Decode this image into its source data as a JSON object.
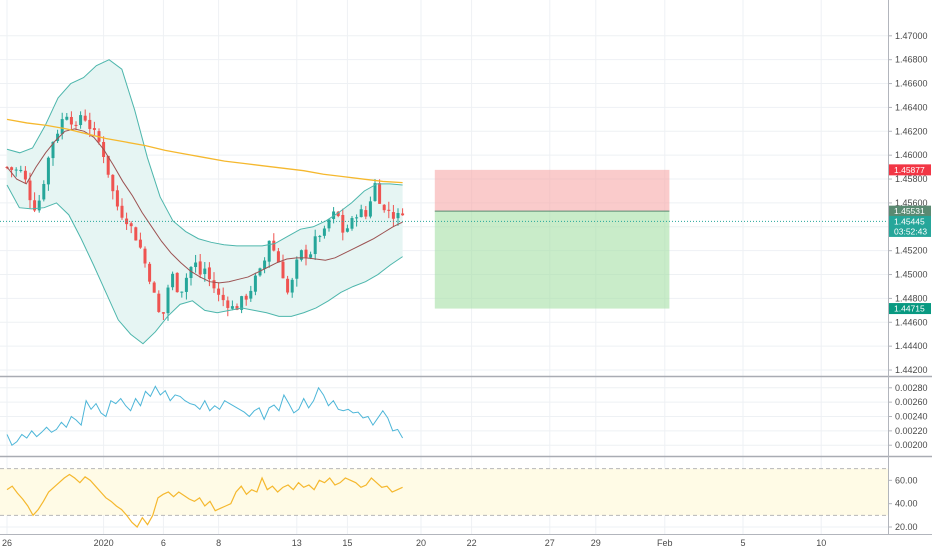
{
  "chart_data": [
    {
      "id": "price",
      "type": "candlestick",
      "title": "",
      "ylim": [
        1.4415,
        1.473
      ],
      "y_ticks": [
        "1.47000",
        "1.46800",
        "1.46600",
        "1.46400",
        "1.46200",
        "1.46000",
        "1.45800",
        "1.45600",
        "1.45400",
        "1.45200",
        "1.45000",
        "1.44800",
        "1.44600",
        "1.44400",
        "1.44200"
      ],
      "x_ticks": [
        {
          "i": 0,
          "label": "26"
        },
        {
          "i": 21,
          "label": "2020"
        },
        {
          "i": 34,
          "label": "6"
        },
        {
          "i": 46,
          "label": "8"
        },
        {
          "i": 63,
          "label": "13"
        },
        {
          "i": 74,
          "label": "15"
        },
        {
          "i": 90,
          "label": "20"
        },
        {
          "i": 101,
          "label": "22"
        },
        {
          "i": 118,
          "label": "27"
        },
        {
          "i": 128,
          "label": "29"
        },
        {
          "i": 143,
          "label": "Feb"
        },
        {
          "i": 160,
          "label": "5"
        },
        {
          "i": 177,
          "label": "10"
        }
      ],
      "x_slots": 186,
      "close_path": [
        1.459,
        1.4588,
        1.4587,
        1.4586,
        1.4575,
        1.456,
        1.4555,
        1.457,
        1.459,
        1.461,
        1.4618,
        1.4628,
        1.4636,
        1.463,
        1.462,
        1.4636,
        1.463,
        1.4622,
        1.4615,
        1.4608,
        1.4595,
        1.4575,
        1.456,
        1.4552,
        1.4548,
        1.454,
        1.4532,
        1.4522,
        1.4508,
        1.4496,
        1.4478,
        1.4463,
        1.447,
        1.4505,
        1.4492,
        1.4485,
        1.4495,
        1.4505,
        1.451,
        1.45,
        1.4505,
        1.4495,
        1.4488,
        1.448,
        1.4478,
        1.4475,
        1.447,
        1.4476,
        1.448,
        1.4485,
        1.4495,
        1.45,
        1.451,
        1.453,
        1.452,
        1.451,
        1.4498,
        1.448,
        1.45,
        1.4515,
        1.452,
        1.4515,
        1.4525,
        1.4535,
        1.4532,
        1.4545,
        1.455,
        1.4548,
        1.4535,
        1.454,
        1.4545,
        1.4555,
        1.455,
        1.4548,
        1.458,
        1.457,
        1.4552,
        1.4555,
        1.455,
        1.4548,
        1.4554
      ],
      "indicators": [
        {
          "name": "basis",
          "color": "#9c5252",
          "values": [
            1.459,
            1.458,
            1.4576,
            1.459,
            1.4602,
            1.4612,
            1.462,
            1.4622,
            1.462,
            1.4615,
            1.4605,
            1.4592,
            1.4578,
            1.4566,
            1.4552,
            1.454,
            1.4528,
            1.4518,
            1.451,
            1.4503,
            1.4498,
            1.4494,
            1.4493,
            1.4494,
            1.4496,
            1.4498,
            1.4502,
            1.4506,
            1.451,
            1.4513,
            1.4514,
            1.4514,
            1.4513,
            1.4512,
            1.4514,
            1.4518,
            1.4522,
            1.4526,
            1.453,
            1.4535,
            1.454,
            1.4544
          ]
        },
        {
          "name": "upper",
          "color": "#4db6ac",
          "values": [
            1.4605,
            1.4602,
            1.4606,
            1.4625,
            1.4648,
            1.466,
            1.4665,
            1.4675,
            1.468,
            1.4672,
            1.4638,
            1.4598,
            1.4565,
            1.4545,
            1.4536,
            1.453,
            1.4527,
            1.4525,
            1.4524,
            1.4524,
            1.4524,
            1.4526,
            1.4532,
            1.4538,
            1.454,
            1.4545,
            1.4552,
            1.456,
            1.457,
            1.4576,
            1.4576,
            1.4575
          ]
        },
        {
          "name": "lower",
          "color": "#4db6ac",
          "values": [
            1.4575,
            1.4556,
            1.4555,
            1.4556,
            1.456,
            1.455,
            1.453,
            1.4508,
            1.4485,
            1.4462,
            1.445,
            1.4442,
            1.4452,
            1.4465,
            1.4475,
            1.4478,
            1.447,
            1.4468,
            1.447,
            1.4472,
            1.447,
            1.4468,
            1.4465,
            1.4465,
            1.4468,
            1.4472,
            1.4478,
            1.4485,
            1.449,
            1.4494,
            1.45,
            1.4508,
            1.4515
          ]
        },
        {
          "name": "ma",
          "color": "#f5b82e",
          "values": [
            1.463,
            1.4627,
            1.4625,
            1.4622,
            1.4618,
            1.4614,
            1.4611,
            1.4608,
            1.4604,
            1.4601,
            1.4598,
            1.4595,
            1.4593,
            1.4591,
            1.4589,
            1.4587,
            1.4584,
            1.4582,
            1.458,
            1.4578,
            1.4577
          ]
        }
      ],
      "position": {
        "entry": 1.45531,
        "stop": 1.45877,
        "target": 1.44715,
        "from_i": 93,
        "to_i": 144,
        "loss_color": "#f7a8a8",
        "profit_color": "#a5dfa5"
      },
      "price_tags": [
        {
          "label": "1.45877",
          "value": 1.45877,
          "color": "#f23645"
        },
        {
          "label": "1.45531",
          "value": 1.45531,
          "color": "#5a8a72"
        },
        {
          "label": "1.45445",
          "value": 1.45445,
          "color": "#26a69a"
        },
        {
          "label": "03:52:43",
          "value": 1.45445,
          "color": "#26a69a",
          "offset": 1
        },
        {
          "label": "1.44715",
          "value": 1.44715,
          "color": "#089981"
        }
      ],
      "current_price": 1.45445,
      "colors": {
        "up": "#26a69a",
        "down": "#ef5350",
        "band_fill": "#e6f5f3",
        "grid": "#eef1f4"
      }
    },
    {
      "id": "volatility",
      "type": "line",
      "ylim": [
        0.00185,
        0.00295
      ],
      "y_ticks": [
        "0.00280",
        "0.00260",
        "0.00240",
        "0.00220",
        "0.00200"
      ],
      "color": "#4db6d8",
      "values": [
        0.00215,
        0.002,
        0.00205,
        0.00215,
        0.0021,
        0.0022,
        0.00212,
        0.00218,
        0.00225,
        0.00218,
        0.00222,
        0.00232,
        0.00225,
        0.0024,
        0.00235,
        0.00228,
        0.00262,
        0.0025,
        0.00258,
        0.00245,
        0.0024,
        0.00262,
        0.00258,
        0.00265,
        0.00255,
        0.00248,
        0.00265,
        0.00255,
        0.00275,
        0.00268,
        0.00282,
        0.0027,
        0.00276,
        0.00262,
        0.0027,
        0.00268,
        0.00262,
        0.00258,
        0.00256,
        0.0025,
        0.00262,
        0.00248,
        0.00255,
        0.0025,
        0.00262,
        0.00258,
        0.00254,
        0.0025,
        0.00246,
        0.0024,
        0.00248,
        0.00252,
        0.00236,
        0.00252,
        0.00256,
        0.00248,
        0.0027,
        0.00258,
        0.00245,
        0.0025,
        0.00265,
        0.00252,
        0.00262,
        0.0028,
        0.0027,
        0.00255,
        0.00262,
        0.0025,
        0.00248,
        0.0025,
        0.00245,
        0.00246,
        0.00238,
        0.0024,
        0.00228,
        0.00238,
        0.00248,
        0.00238,
        0.0022,
        0.00222,
        0.0021
      ]
    },
    {
      "id": "rsi",
      "type": "line",
      "ylim": [
        14,
        80
      ],
      "y_ticks": [
        "60.00",
        "40.00",
        "20.00"
      ],
      "bands": [
        70,
        30
      ],
      "color": "#f5b82e",
      "band_fill": "#fffbe6",
      "values": [
        52,
        55,
        49,
        44,
        38,
        30,
        35,
        42,
        50,
        54,
        58,
        62,
        65,
        62,
        58,
        63,
        60,
        55,
        50,
        45,
        42,
        38,
        35,
        30,
        24,
        20,
        28,
        22,
        30,
        45,
        48,
        50,
        46,
        50,
        47,
        44,
        42,
        45,
        38,
        42,
        34,
        36,
        38,
        40,
        50,
        55,
        48,
        52,
        50,
        62,
        52,
        55,
        50,
        54,
        56,
        52,
        58,
        54,
        56,
        52,
        60,
        58,
        62,
        56,
        58,
        62,
        60,
        58,
        54,
        56,
        62,
        58,
        54,
        55,
        50,
        52,
        54
      ]
    }
  ]
}
